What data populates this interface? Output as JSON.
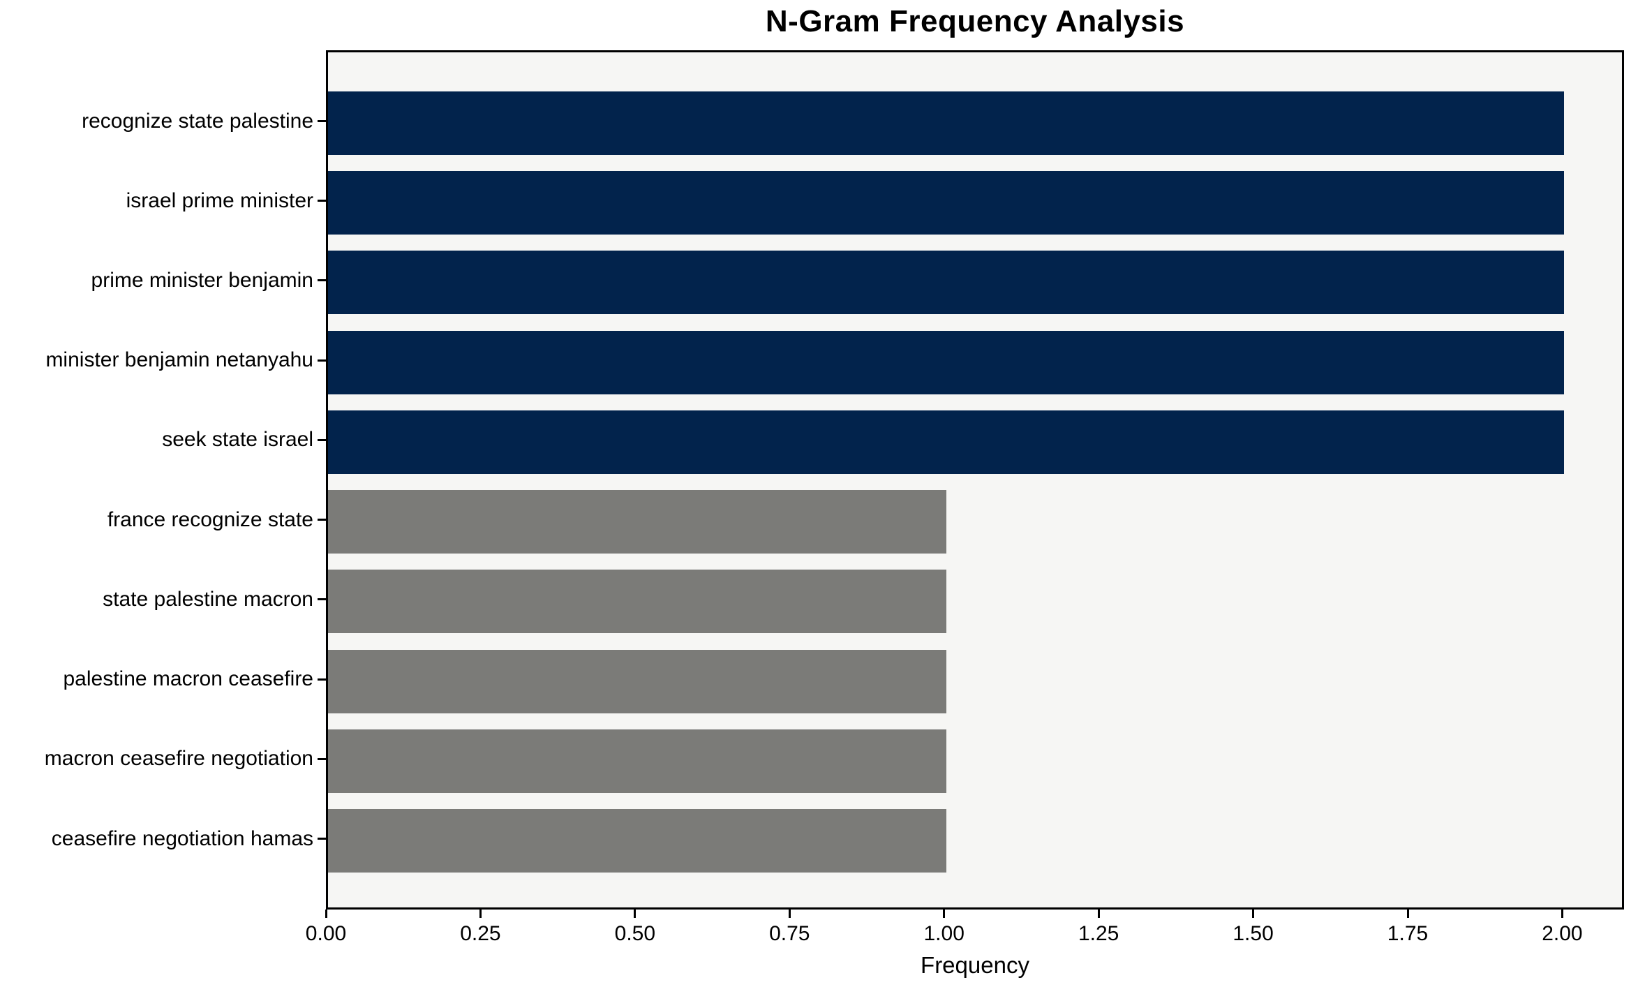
{
  "chart_data": {
    "type": "bar",
    "orientation": "horizontal",
    "title": "N-Gram Frequency Analysis",
    "xlabel": "Frequency",
    "ylabel": "",
    "categories": [
      "recognize state palestine",
      "israel prime minister",
      "prime minister benjamin",
      "minister benjamin netanyahu",
      "seek state israel",
      "france recognize state",
      "state palestine macron",
      "palestine macron ceasefire",
      "macron ceasefire negotiation",
      "ceasefire negotiation hamas"
    ],
    "values": [
      2,
      2,
      2,
      2,
      2,
      1,
      1,
      1,
      1,
      1
    ],
    "bar_colors": [
      "#02234c",
      "#02234c",
      "#02234c",
      "#02234c",
      "#02234c",
      "#7b7b78",
      "#7b7b78",
      "#7b7b78",
      "#7b7b78",
      "#7b7b78"
    ],
    "xlim": [
      0,
      2.1
    ],
    "xticks": [
      {
        "value": 0.0,
        "label": "0.00"
      },
      {
        "value": 0.25,
        "label": "0.25"
      },
      {
        "value": 0.5,
        "label": "0.50"
      },
      {
        "value": 0.75,
        "label": "0.75"
      },
      {
        "value": 1.0,
        "label": "1.00"
      },
      {
        "value": 1.25,
        "label": "1.25"
      },
      {
        "value": 1.5,
        "label": "1.50"
      },
      {
        "value": 1.75,
        "label": "1.75"
      },
      {
        "value": 2.0,
        "label": "2.00"
      }
    ],
    "grid": false,
    "legend": "none",
    "colors": {
      "high_freq_bar": "#02234c",
      "low_freq_bar": "#7b7b78",
      "plot_background": "#f6f6f4",
      "figure_background": "#ffffff",
      "axis": "#000000"
    }
  }
}
